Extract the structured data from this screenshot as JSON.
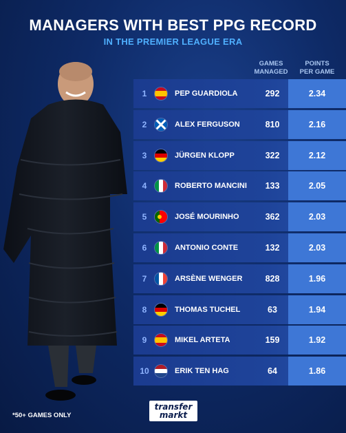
{
  "header": {
    "title": "MANAGERS WITH BEST PPG RECORD",
    "subtitle": "IN THE PREMIER LEAGUE ERA"
  },
  "columns": {
    "games_line1": "GAMES",
    "games_line2": "MANAGED",
    "ppg_line1": "POINTS",
    "ppg_line2": "PER GAME"
  },
  "rows": [
    {
      "rank": "1",
      "flag": "spain-flag",
      "name": "PEP GUARDIOLA",
      "games": "292",
      "ppg": "2.34"
    },
    {
      "rank": "2",
      "flag": "scotland-flag",
      "name": "ALEX FERGUSON",
      "games": "810",
      "ppg": "2.16"
    },
    {
      "rank": "3",
      "flag": "germany-flag",
      "name": "JÜRGEN KLOPP",
      "games": "322",
      "ppg": "2.12"
    },
    {
      "rank": "4",
      "flag": "italy-flag",
      "name": "ROBERTO MANCINI",
      "games": "133",
      "ppg": "2.05"
    },
    {
      "rank": "5",
      "flag": "portugal-flag",
      "name": "JOSÉ MOURINHO",
      "games": "362",
      "ppg": "2.03"
    },
    {
      "rank": "6",
      "flag": "italy-flag",
      "name": "ANTONIO CONTE",
      "games": "132",
      "ppg": "2.03"
    },
    {
      "rank": "7",
      "flag": "france-flag",
      "name": "ARSÈNE WENGER",
      "games": "828",
      "ppg": "1.96"
    },
    {
      "rank": "8",
      "flag": "germany-flag",
      "name": "THOMAS TUCHEL",
      "games": "63",
      "ppg": "1.94"
    },
    {
      "rank": "9",
      "flag": "spain-flag",
      "name": "MIKEL ARTETA",
      "games": "159",
      "ppg": "1.92"
    },
    {
      "rank": "10",
      "flag": "netherlands-flag",
      "name": "ERIK TEN HAG",
      "games": "64",
      "ppg": "1.86"
    }
  ],
  "footnote": "*50+ GAMES ONLY",
  "logo": {
    "line1": "transfer",
    "line2": "markt"
  },
  "colors": {
    "accent": "#4fb0ff",
    "row": "#1e4399",
    "ppg_cell": "#3e77d6"
  }
}
